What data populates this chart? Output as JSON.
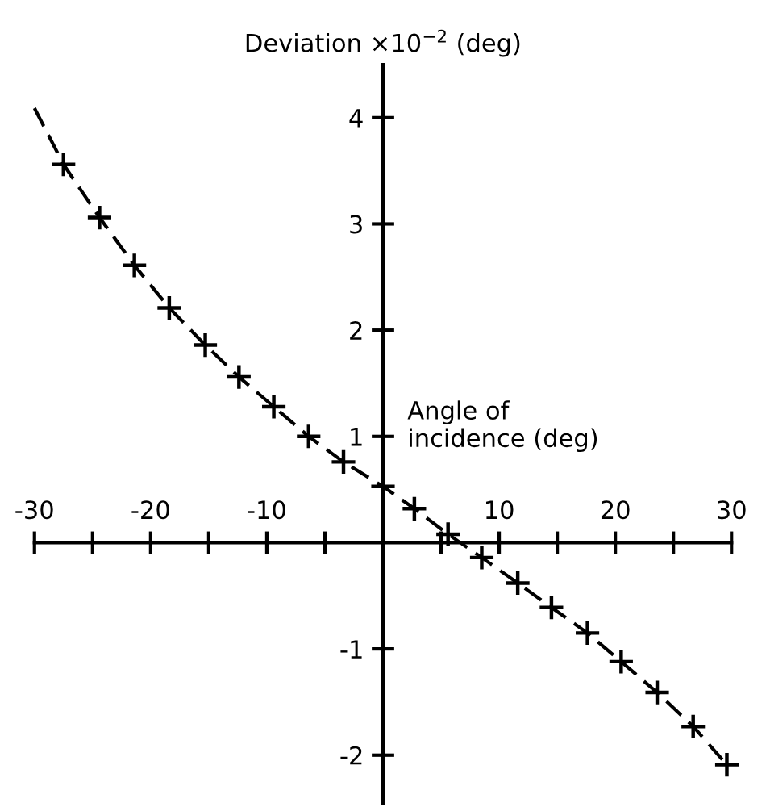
{
  "chart_data": {
    "type": "line",
    "xlabel": "Angle of\nincidence (deg)",
    "ylabel": "Deviation ×10$^{−2}$ (deg)",
    "series": [
      {
        "color": "#000000",
        "line_style": "dashed",
        "marker": "none",
        "x": [
          -30,
          -27.5,
          -24.4,
          -21.4,
          -18.4,
          -15.3,
          -12.4,
          -9.4,
          -6.4,
          -3.4,
          0,
          2.7,
          5.6,
          8.5,
          11.6,
          14.5,
          17.6,
          20.5,
          23.6,
          26.7,
          29.6
        ],
        "values": [
          4.09,
          3.56,
          3.06,
          2.61,
          2.21,
          1.86,
          1.56,
          1.28,
          1.0,
          0.76,
          0.53,
          0.32,
          0.08,
          -0.14,
          -0.38,
          -0.61,
          -0.85,
          -1.12,
          -1.41,
          -1.73,
          -2.09
        ]
      },
      {
        "type": "scatter",
        "color": "#000000",
        "marker": "cross",
        "x": [
          -27.5,
          -24.4,
          -21.4,
          -18.4,
          -15.3,
          -12.4,
          -9.4,
          -6.4,
          -3.4,
          0,
          2.7,
          5.6,
          8.5,
          11.6,
          14.5,
          17.6,
          20.5,
          23.6,
          26.7,
          29.6
        ],
        "values": [
          3.56,
          3.06,
          2.61,
          2.21,
          1.86,
          1.56,
          1.28,
          1.0,
          0.76,
          0.53,
          0.32,
          0.08,
          -0.14,
          -0.38,
          -0.61,
          -0.85,
          -1.12,
          -1.41,
          -1.73,
          -2.09
        ]
      }
    ],
    "xlim": [
      -30,
      30
    ],
    "ylim": [
      -2.45,
      4.5
    ],
    "xticks": [
      -30,
      {
        "value": -25,
        "label": null
      },
      -20,
      {
        "value": -15,
        "label": null
      },
      -10,
      {
        "value": -5,
        "label": null
      },
      {
        "value": 0,
        "label": null
      },
      {
        "value": 5,
        "label": null
      },
      10,
      {
        "value": 15,
        "label": null
      },
      20,
      {
        "value": 25,
        "label": null
      },
      30
    ],
    "yticks": [
      {
        "value": -2,
        "label": "-2"
      },
      {
        "value": -1,
        "label": "-1"
      },
      1,
      2,
      3,
      4
    ],
    "grid": false,
    "legend": false
  }
}
